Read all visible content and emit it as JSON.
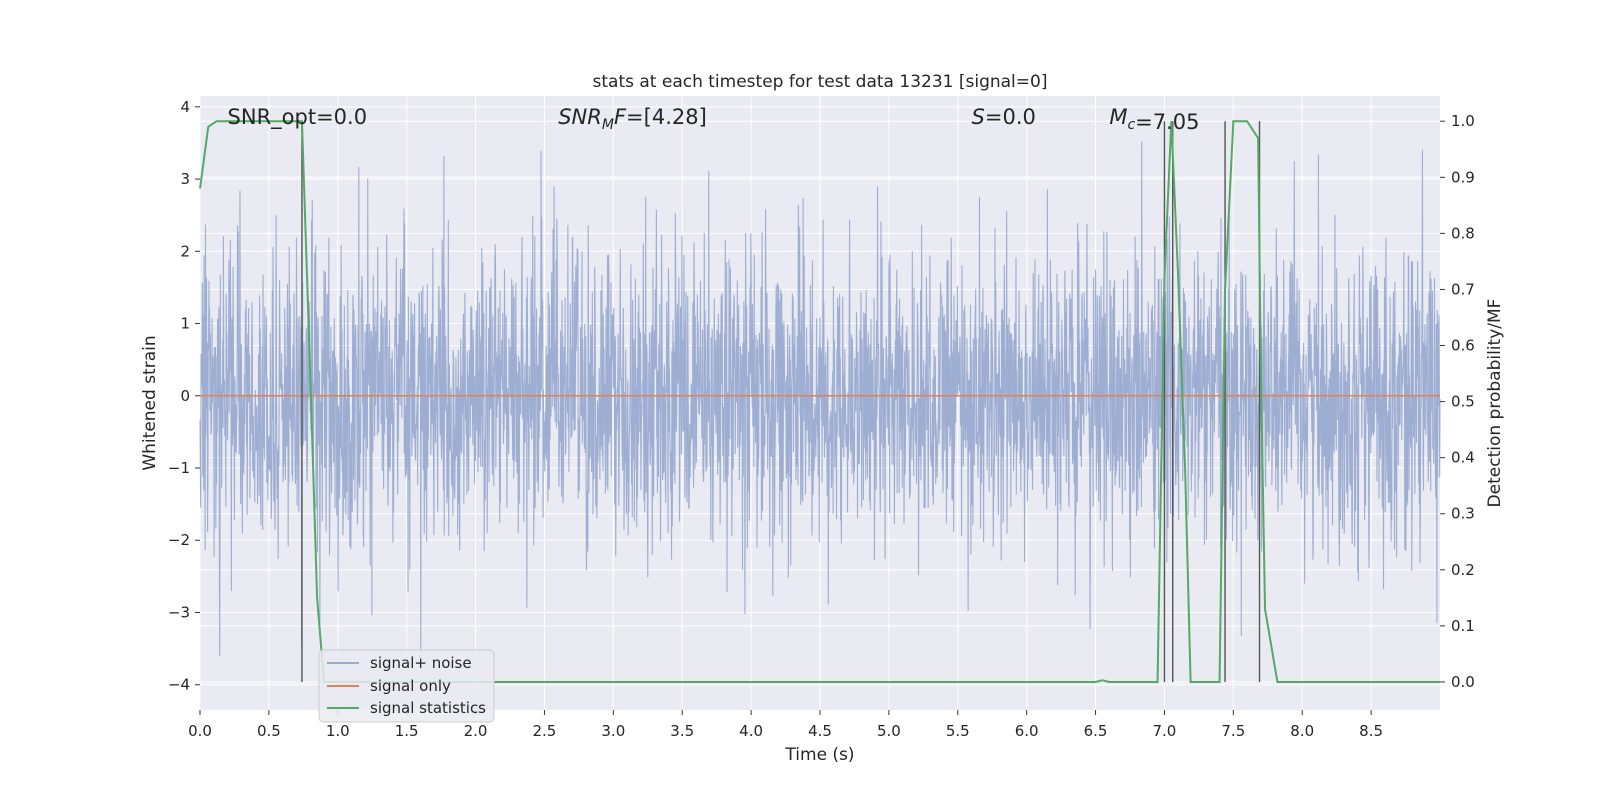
{
  "chart_data": {
    "type": "line",
    "title": "stats at each timestep for test data 13231 [signal=0]",
    "xlabel": "Time (s)",
    "ylabel": "Whitened strain",
    "y2label": "Detection probability/MF",
    "xlim": [
      0.0,
      9.0
    ],
    "ylim": [
      -4.35,
      4.15
    ],
    "y2lim": [
      -0.05,
      1.045
    ],
    "x_ticks": [
      "0.0",
      "0.5",
      "1.0",
      "1.5",
      "2.0",
      "2.5",
      "3.0",
      "3.5",
      "4.0",
      "4.5",
      "5.0",
      "5.5",
      "6.0",
      "6.5",
      "7.0",
      "7.5",
      "8.0",
      "8.5"
    ],
    "y_ticks": [
      "4",
      "3",
      "2",
      "1",
      "0",
      "−1",
      "−2",
      "−3",
      "−4"
    ],
    "y2_ticks": [
      "1.0",
      "0.9",
      "0.8",
      "0.7",
      "0.6",
      "0.5",
      "0.4",
      "0.3",
      "0.2",
      "0.1",
      "0.0"
    ],
    "grid": true,
    "legend_position": "lower-left",
    "colors": {
      "background": "#eaeaf2",
      "grid": "#ffffff",
      "noise": "#9aabd0",
      "signal": "#dd8452",
      "stats": "#55a868",
      "markers": "#555555"
    },
    "series": [
      {
        "name": "signal+ noise",
        "axis": "left",
        "description_range": [
          -3.6,
          3.8
        ],
        "sample_rate_hz": 400,
        "noise_sigma": 1.0
      },
      {
        "name": "signal only",
        "axis": "left",
        "x": [
          0.0,
          9.0
        ],
        "y": [
          0.0,
          0.0
        ]
      },
      {
        "name": "signal statistics",
        "axis": "right",
        "x": [
          0.0,
          0.06,
          0.12,
          0.7,
          0.74,
          0.8,
          0.85,
          0.9,
          6.5,
          6.55,
          6.6,
          6.95,
          7.0,
          7.05,
          7.1,
          7.15,
          7.19,
          7.4,
          7.44,
          7.5,
          7.6,
          7.68,
          7.7,
          7.73,
          7.82,
          7.9,
          9.0
        ],
        "y": [
          0.88,
          0.99,
          1.0,
          1.0,
          1.0,
          0.55,
          0.15,
          0.0,
          0.0,
          0.003,
          0.0,
          0.0,
          0.72,
          1.0,
          0.72,
          0.38,
          0.0,
          0.0,
          0.7,
          1.0,
          1.0,
          0.97,
          0.55,
          0.13,
          0.0,
          0.0,
          0.0
        ]
      }
    ],
    "marker_times": [
      0.74,
      7.0,
      7.06,
      7.44,
      7.69
    ],
    "annotations": [
      {
        "text": "SNR_opt=0.0",
        "x": 0.2
      },
      {
        "math": true,
        "pre": "SNR",
        "sub": "M",
        "post": "F",
        "value": "=[4.28]",
        "x": 2.6
      },
      {
        "math": true,
        "pre": "S",
        "sub": "",
        "post": "",
        "value": "=0.0",
        "x": 5.6
      },
      {
        "math": true,
        "pre": "M",
        "sub": "c",
        "post": "",
        "value": "=7.05",
        "x": 6.6
      }
    ]
  }
}
